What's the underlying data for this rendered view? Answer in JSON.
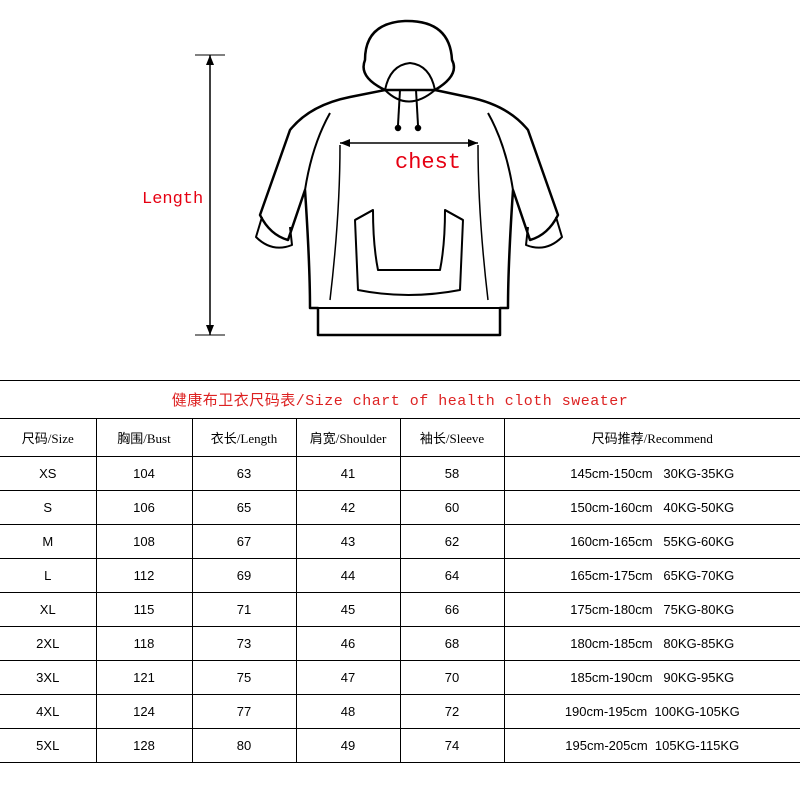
{
  "diagram": {
    "length_label": "Length",
    "chest_label": "chest",
    "label_color": "#e60012",
    "outline_color": "#000000",
    "outline_width": 2.5,
    "arrow_color": "#000000"
  },
  "title": {
    "text": "健康布卫衣尺码表/Size chart of health cloth sweater",
    "color": "#d22",
    "fontsize": 15
  },
  "table": {
    "border_color": "#000000",
    "background_color": "#ffffff",
    "header_fontsize": 13,
    "cell_fontsize": 13,
    "columns": [
      {
        "key": "size",
        "label": "尺码/Size",
        "width_pct": 12
      },
      {
        "key": "bust",
        "label": "胸围/Bust",
        "width_pct": 12
      },
      {
        "key": "length",
        "label": "衣长/Length",
        "width_pct": 13
      },
      {
        "key": "shoulder",
        "label": "肩宽/Shoulder",
        "width_pct": 13
      },
      {
        "key": "sleeve",
        "label": "袖长/Sleeve",
        "width_pct": 13
      },
      {
        "key": "recommend",
        "label": "尺码推荐/Recommend",
        "width_pct": 37
      }
    ],
    "rows": [
      {
        "size": "XS",
        "bust": "104",
        "length": "63",
        "shoulder": "41",
        "sleeve": "58",
        "recommend": "145cm-150cm   30KG-35KG"
      },
      {
        "size": "S",
        "bust": "106",
        "length": "65",
        "shoulder": "42",
        "sleeve": "60",
        "recommend": "150cm-160cm   40KG-50KG"
      },
      {
        "size": "M",
        "bust": "108",
        "length": "67",
        "shoulder": "43",
        "sleeve": "62",
        "recommend": "160cm-165cm   55KG-60KG"
      },
      {
        "size": "L",
        "bust": "112",
        "length": "69",
        "shoulder": "44",
        "sleeve": "64",
        "recommend": "165cm-175cm   65KG-70KG"
      },
      {
        "size": "XL",
        "bust": "115",
        "length": "71",
        "shoulder": "45",
        "sleeve": "66",
        "recommend": "175cm-180cm   75KG-80KG"
      },
      {
        "size": "2XL",
        "bust": "118",
        "length": "73",
        "shoulder": "46",
        "sleeve": "68",
        "recommend": "180cm-185cm   80KG-85KG"
      },
      {
        "size": "3XL",
        "bust": "121",
        "length": "75",
        "shoulder": "47",
        "sleeve": "70",
        "recommend": "185cm-190cm   90KG-95KG"
      },
      {
        "size": "4XL",
        "bust": "124",
        "length": "77",
        "shoulder": "48",
        "sleeve": "72",
        "recommend": "190cm-195cm  100KG-105KG"
      },
      {
        "size": "5XL",
        "bust": "128",
        "length": "80",
        "shoulder": "49",
        "sleeve": "74",
        "recommend": "195cm-205cm  105KG-115KG"
      }
    ]
  }
}
